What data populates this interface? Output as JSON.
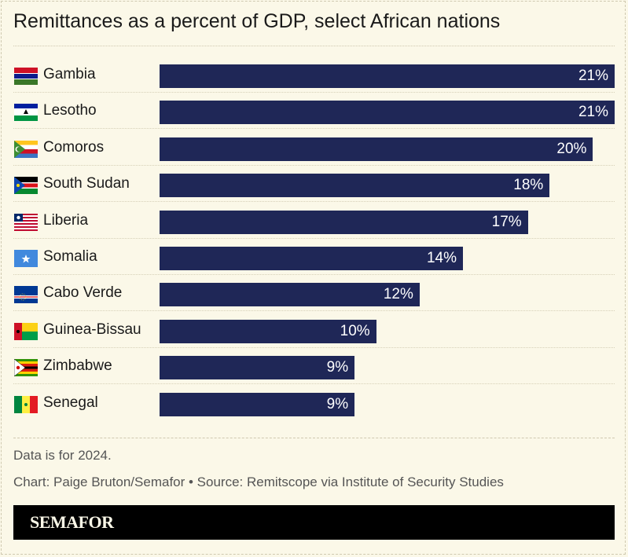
{
  "colors": {
    "bar": "#1f2757",
    "background": "#fbf8e8",
    "value_label": "#ffffff"
  },
  "chart_data": {
    "type": "bar",
    "orientation": "horizontal",
    "title": "Remittances as a percent of GDP, select African nations",
    "categories": [
      "Gambia",
      "Lesotho",
      "Comoros",
      "South Sudan",
      "Liberia",
      "Somalia",
      "Cabo Verde",
      "Guinea-Bissau",
      "Zimbabwe",
      "Senegal"
    ],
    "flag_icons": [
      "gambia-flag-icon",
      "lesotho-flag-icon",
      "comoros-flag-icon",
      "south-sudan-flag-icon",
      "liberia-flag-icon",
      "somalia-flag-icon",
      "cabo-verde-flag-icon",
      "guinea-bissau-flag-icon",
      "zimbabwe-flag-icon",
      "senegal-flag-icon"
    ],
    "values": [
      21,
      21,
      20,
      18,
      17,
      14,
      12,
      10,
      9,
      9
    ],
    "value_labels": [
      "21%",
      "21%",
      "20%",
      "18%",
      "17%",
      "14%",
      "12%",
      "10%",
      "9%",
      "9%"
    ],
    "xlim": [
      0,
      21
    ],
    "grid": false
  },
  "footer": {
    "note": "Data is for 2024.",
    "credit": "Chart: Paige Bruton/Semafor • Source: Remitscope via Institute of Security Studies",
    "brand": "SEMAFOR"
  }
}
